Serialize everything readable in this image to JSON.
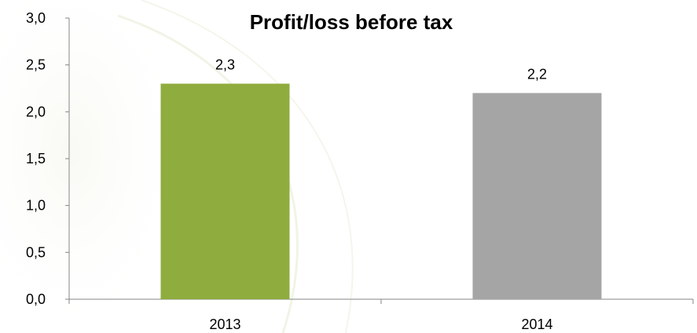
{
  "chart_data": {
    "type": "bar",
    "title": "Profit/loss before tax",
    "xlabel": "",
    "ylabel": "",
    "categories": [
      "2013",
      "2014"
    ],
    "values": [
      2.3,
      2.2
    ],
    "data_labels": [
      "2,3",
      "2,2"
    ],
    "bar_colors": [
      "#8fac3e",
      "#a5a5a5"
    ],
    "ylim": [
      0,
      3.0
    ],
    "yticks": [
      0,
      0.5,
      1.0,
      1.5,
      2.0,
      2.5,
      3.0
    ],
    "ytick_labels": [
      "0,0",
      "0,5",
      "1,0",
      "1,5",
      "2,0",
      "2,5",
      "3,0"
    ],
    "grid": false,
    "legend": "none"
  }
}
